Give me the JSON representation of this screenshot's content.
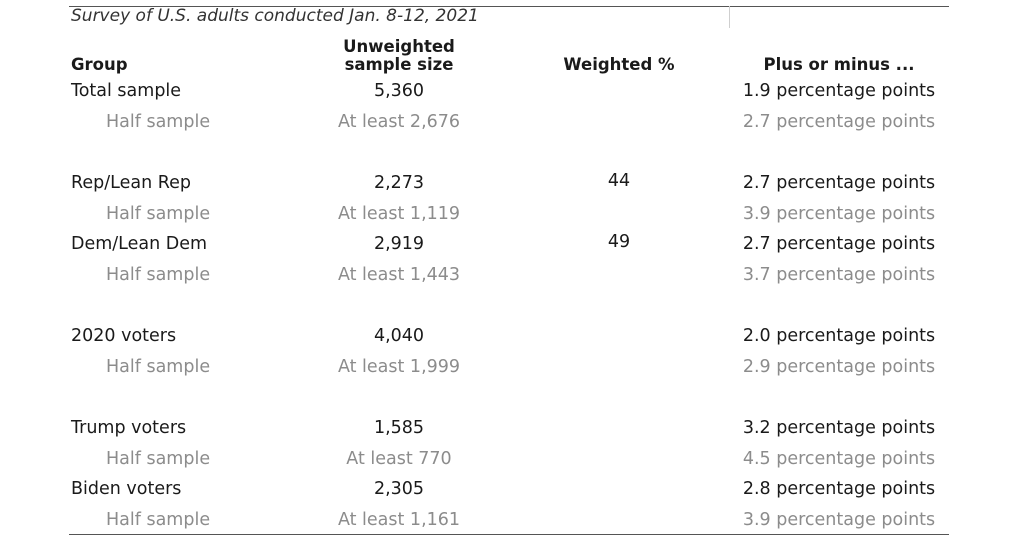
{
  "subtitle": "Survey of U.S. adults conducted Jan. 8-12, 2021",
  "headers": {
    "group": "Group",
    "size_line1": "Unweighted",
    "size_line2": "sample size",
    "weighted": "Weighted %",
    "moe": "Plus or minus ..."
  },
  "rows": [
    {
      "group": "Total sample",
      "size": "5,360",
      "weighted": "",
      "moe": "1.9 percentage points"
    },
    {
      "group": "Half sample",
      "size": "At least 2,676",
      "weighted": "",
      "moe": "2.7 percentage points"
    },
    {
      "group": "Rep/Lean Rep",
      "size": "2,273",
      "weighted": "44",
      "moe": "2.7 percentage points"
    },
    {
      "group": "Half sample",
      "size": "At least 1,119",
      "weighted": "",
      "moe": "3.9 percentage points"
    },
    {
      "group": "Dem/Lean Dem",
      "size": "2,919",
      "weighted": "49",
      "moe": "2.7 percentage points"
    },
    {
      "group": "Half sample",
      "size": "At least 1,443",
      "weighted": "",
      "moe": "3.7 percentage points"
    },
    {
      "group": "2020 voters",
      "size": "4,040",
      "weighted": "",
      "moe": "2.0 percentage points"
    },
    {
      "group": "Half sample",
      "size": "At least 1,999",
      "weighted": "",
      "moe": "2.9 percentage points"
    },
    {
      "group": "Trump voters",
      "size": "1,585",
      "weighted": "",
      "moe": "3.2 percentage points"
    },
    {
      "group": "Half sample",
      "size": "At least 770",
      "weighted": "",
      "moe": "4.5 percentage points"
    },
    {
      "group": "Biden voters",
      "size": "2,305",
      "weighted": "",
      "moe": "2.8 percentage points"
    },
    {
      "group": "Half sample",
      "size": "At least 1,161",
      "weighted": "",
      "moe": "3.9 percentage points"
    }
  ],
  "colors": {
    "text": "#1a1a1a",
    "subtext": "#8c8c8c",
    "rule": "#555555"
  }
}
